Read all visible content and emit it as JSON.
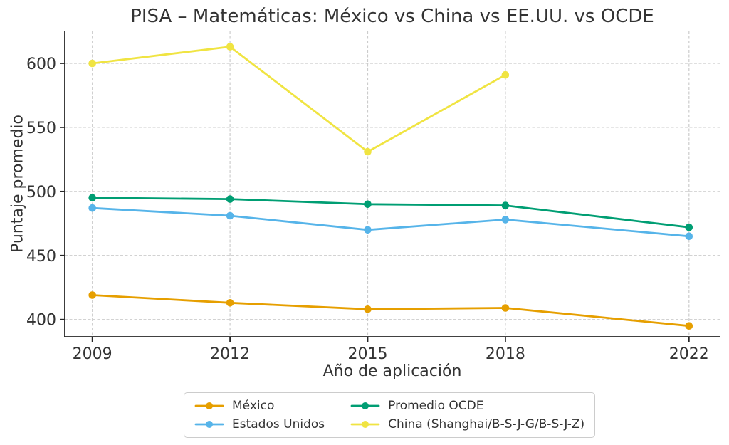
{
  "chart_data": {
    "type": "line",
    "title": "PISA – Matemáticas: México vs China vs EE.UU. vs OCDE",
    "xlabel": "Año de aplicación",
    "ylabel": "Puntaje promedio",
    "x": [
      2009,
      2012,
      2015,
      2018,
      2022
    ],
    "x_tick_labels": [
      "2009",
      "2012",
      "2015",
      "2018",
      "2022"
    ],
    "y_ticks": [
      400,
      450,
      500,
      550,
      600
    ],
    "xlim": [
      2008.4,
      2022.67
    ],
    "ylim": [
      386.5,
      625
    ],
    "grid": "dashed-both-axes",
    "legend_position": "bottom-center-outside",
    "series": [
      {
        "name": "México",
        "color": "#E69F00",
        "values": [
          419,
          413,
          408,
          409,
          395
        ]
      },
      {
        "name": "Estados Unidos",
        "color": "#56B4E9",
        "values": [
          487,
          481,
          470,
          478,
          465
        ]
      },
      {
        "name": "Promedio OCDE",
        "color": "#009E73",
        "values": [
          495,
          494,
          490,
          489,
          472
        ]
      },
      {
        "name": "China (Shanghai/B-S-J-G/B-S-J-Z)",
        "color": "#F0E442",
        "values": [
          600,
          613,
          531,
          591,
          null
        ]
      }
    ],
    "colors": {
      "background": "#ffffff",
      "grid": "#cccccc",
      "spine": "#262626",
      "text": "#333333"
    }
  }
}
